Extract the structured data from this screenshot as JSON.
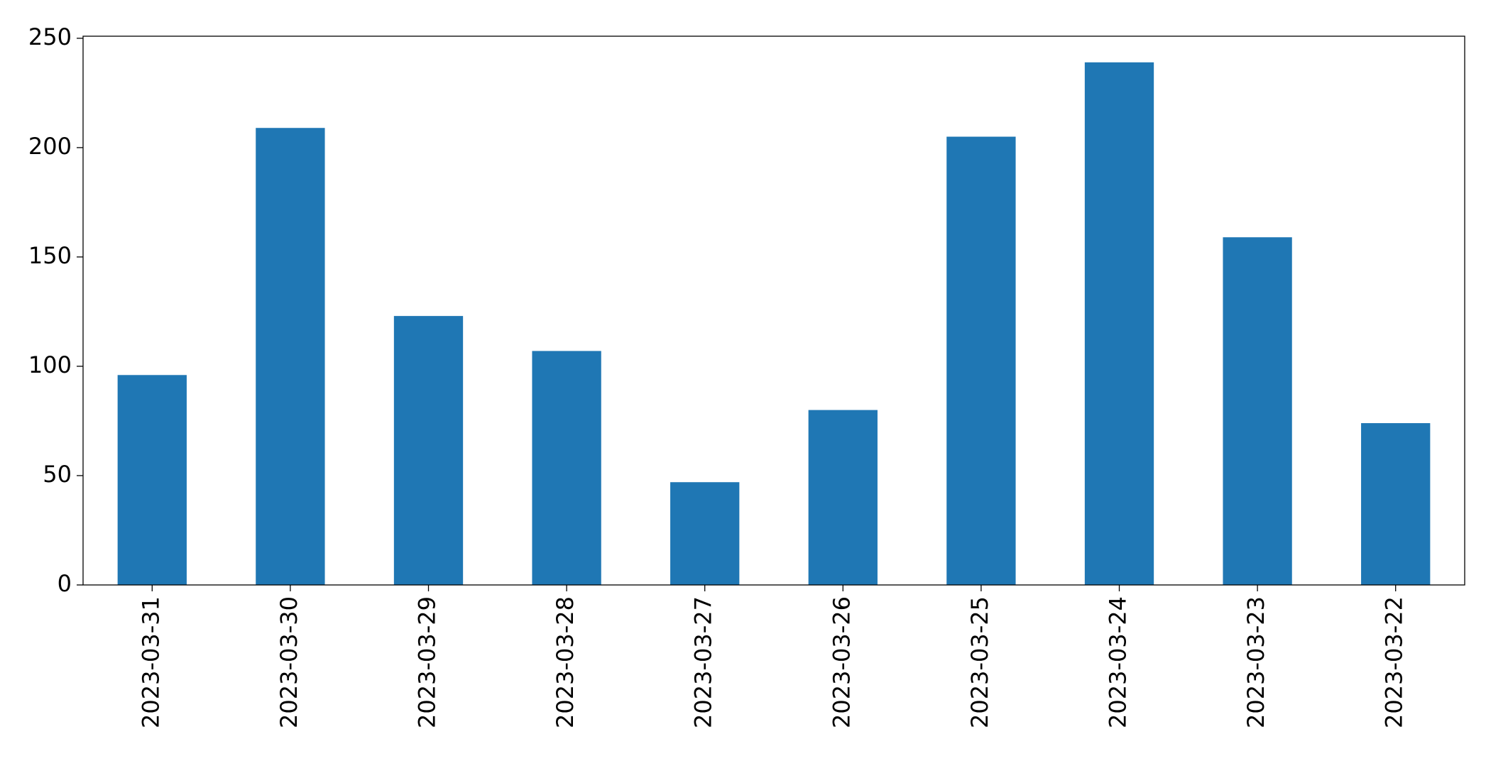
{
  "chart_data": {
    "type": "bar",
    "categories": [
      "2023-03-31",
      "2023-03-30",
      "2023-03-29",
      "2023-03-28",
      "2023-03-27",
      "2023-03-26",
      "2023-03-25",
      "2023-03-24",
      "2023-03-23",
      "2023-03-22"
    ],
    "values": [
      96,
      209,
      123,
      107,
      47,
      80,
      205,
      239,
      159,
      74
    ],
    "color": "#1f77b4",
    "ylim": [
      0,
      250.95
    ],
    "yticks": [
      0,
      50,
      100,
      150,
      200,
      250
    ],
    "grid": false
  }
}
